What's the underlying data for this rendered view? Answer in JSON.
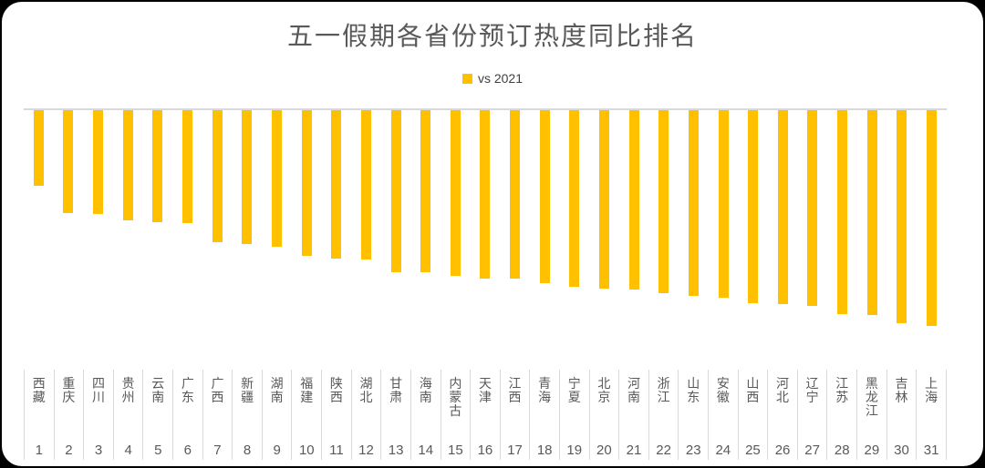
{
  "chart": {
    "title": "五一假期各省份预订热度同比排名",
    "legend_label": "vs 2021"
  },
  "colors": {
    "bar": "#FFC000",
    "axis_line": "#D9D9D9",
    "title_text": "#595959",
    "category_text": "#595959",
    "legend_text": "#404040",
    "card_background": "#FFFFFF",
    "outer_frame": "#000000"
  },
  "chart_data": {
    "type": "bar",
    "title": "五一假期各省份预订热度同比排名",
    "legend": [
      "vs 2021"
    ],
    "legend_position": "top center",
    "orientation": "vertical-negative-bars-hanging-from-zero-line",
    "grid": false,
    "value_axis_visible": false,
    "values_note": "value axis unlabeled in chart; values estimated from bar lengths as % vs 2021",
    "ylim": [
      -80,
      0
    ],
    "categories": [
      "西藏",
      "重庆",
      "四川",
      "贵州",
      "云南",
      "广东",
      "广西",
      "新疆",
      "湖南",
      "福建",
      "陕西",
      "湖北",
      "甘肃",
      "海南",
      "内蒙古",
      "天津",
      "江西",
      "青海",
      "宁夏",
      "北京",
      "河南",
      "浙江",
      "山东",
      "安徽",
      "山西",
      "河北",
      "辽宁",
      "江苏",
      "黑龙江",
      "吉林",
      "上海"
    ],
    "category_ranks": [
      1,
      2,
      3,
      4,
      5,
      6,
      7,
      8,
      9,
      10,
      11,
      12,
      13,
      14,
      15,
      16,
      17,
      18,
      19,
      20,
      21,
      22,
      23,
      24,
      25,
      26,
      27,
      28,
      29,
      30,
      31
    ],
    "series": [
      {
        "name": "vs 2021",
        "values": [
          -28,
          -38,
          -38.5,
          -41,
          -41.5,
          -42,
          -49,
          -49.5,
          -50.5,
          -54,
          -55,
          -55.5,
          -60,
          -60,
          -61.5,
          -62.5,
          -62.5,
          -64,
          -65.5,
          -66,
          -66.5,
          -68,
          -69,
          -69.5,
          -71.5,
          -72,
          -72.5,
          -75.5,
          -76,
          -79,
          -80
        ]
      }
    ]
  }
}
